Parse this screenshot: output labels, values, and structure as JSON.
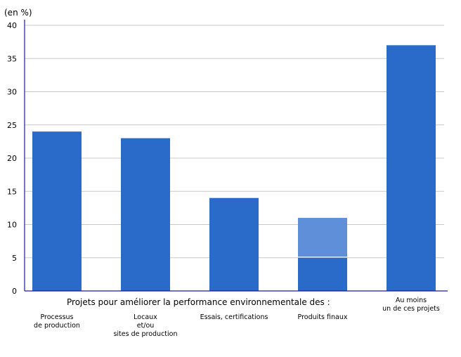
{
  "chart_data": {
    "type": "bar",
    "ylabel": "(en %)",
    "group_caption": "Projets pour améliorer la performance environnementale des :",
    "ylim": [
      0,
      40
    ],
    "yticks": [
      0,
      5,
      10,
      15,
      20,
      25,
      30,
      35,
      40
    ],
    "grid": true,
    "categories": [
      [
        "Processus",
        "de production"
      ],
      [
        "Locaux",
        "et/ou",
        "sites de production"
      ],
      [
        "Essais, certifications"
      ],
      [
        "Produits finaux"
      ],
      [
        "Au moins",
        "un de ces projets"
      ]
    ],
    "series": [
      {
        "values": [
          24,
          23,
          14,
          5,
          37
        ]
      },
      {
        "values": [
          0,
          0,
          0,
          6,
          0
        ]
      }
    ],
    "colors": {
      "bar": "#2a6ac8",
      "bar_light": "#5f8fd8",
      "axis": "#1a1aa0",
      "grid": "#c8c8c8"
    }
  }
}
